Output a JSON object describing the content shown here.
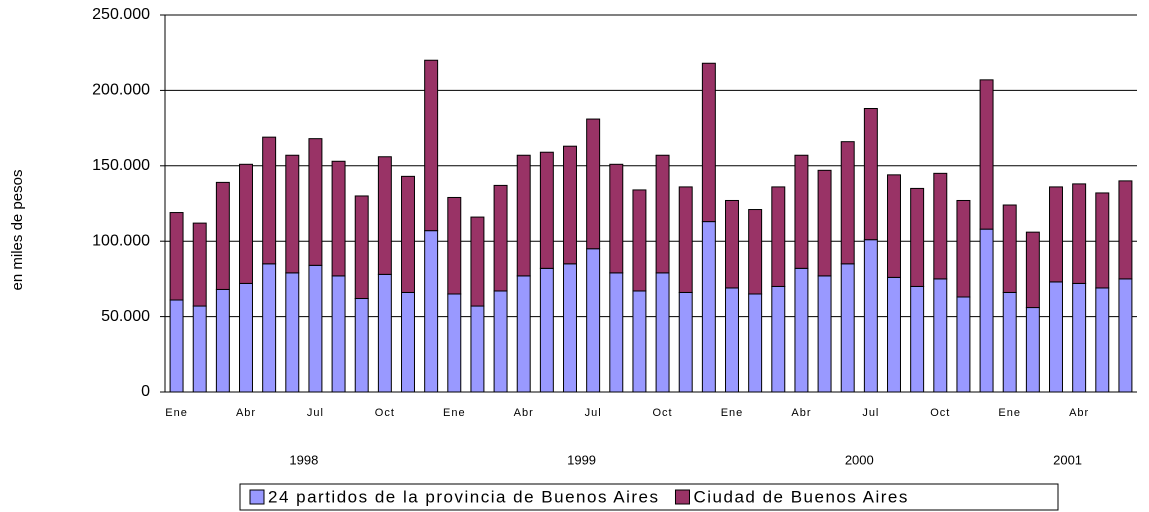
{
  "chart_data": {
    "type": "stacked_bar",
    "y_label": "en miles de pesos",
    "categories": [
      "Ene",
      null,
      null,
      "Abr",
      null,
      null,
      "Jul",
      null,
      null,
      "Oct",
      null,
      null,
      "Ene",
      null,
      null,
      "Abr",
      null,
      null,
      "Jul",
      null,
      null,
      "Oct",
      null,
      null,
      "Ene",
      null,
      null,
      "Abr",
      null,
      null,
      "Jul",
      null,
      null,
      "Oct",
      null,
      null,
      "Ene",
      null,
      null,
      "Abr",
      null,
      null
    ],
    "year_labels": [
      "1998",
      "1999",
      "2000",
      "2001"
    ],
    "series": [
      {
        "name": "24 partidos de la provincia de Buenos Aires",
        "color": "#9999ff",
        "values": [
          61000,
          57000,
          68000,
          72000,
          85000,
          79000,
          84000,
          77000,
          62000,
          78000,
          66000,
          107000,
          65000,
          57000,
          67000,
          77000,
          82000,
          85000,
          95000,
          79000,
          67000,
          79000,
          66000,
          113000,
          69000,
          65000,
          70000,
          82000,
          77000,
          85000,
          101000,
          76000,
          70000,
          75000,
          63000,
          108000,
          66000,
          56000,
          73000,
          72000,
          69000,
          75000
        ]
      },
      {
        "name": "Ciudad de Buenos Aires",
        "color": "#993366",
        "values": [
          58000,
          55000,
          71000,
          79000,
          84000,
          78000,
          84000,
          76000,
          68000,
          78000,
          77000,
          113000,
          64000,
          59000,
          70000,
          80000,
          77000,
          78000,
          86000,
          72000,
          67000,
          78000,
          70000,
          105000,
          58000,
          56000,
          66000,
          75000,
          70000,
          81000,
          87000,
          68000,
          65000,
          70000,
          64000,
          99000,
          58000,
          50000,
          63000,
          66000,
          63000,
          65000
        ]
      }
    ],
    "ylim": [
      0,
      250000
    ],
    "yticks": [
      0,
      {
        "value": 50000,
        "label": "50.000"
      },
      {
        "value": 100000,
        "label": "100.000"
      },
      {
        "value": 150000,
        "label": "150.000"
      },
      {
        "value": 200000,
        "label": "200.000"
      },
      {
        "value": 250000,
        "label": "250.000"
      }
    ],
    "grid": true
  }
}
